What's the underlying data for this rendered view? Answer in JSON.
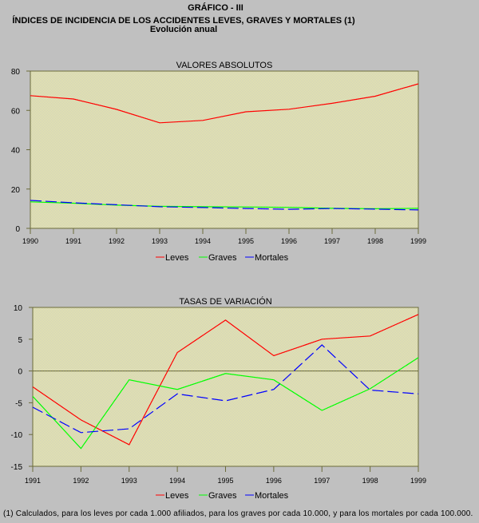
{
  "header": {
    "figure_label": "GRÁFICO - III",
    "title": "ÍNDICES DE INCIDENCIA DE LOS ACCIDENTES LEVES, GRAVES Y MORTALES (1)",
    "subtitle": "Evolución anual"
  },
  "colors": {
    "background": "#c0c0c0",
    "plot_bg_a": "#f0f0a0",
    "plot_bg_b": "#c8c8c8",
    "axis": "#6b6b3a",
    "leves": "#ff0000",
    "graves": "#00ff00",
    "mortales": "#0000ff"
  },
  "legend": [
    "Leves",
    "Graves",
    "Mortales"
  ],
  "footnote": "(1) Calculados, para los leves por cada 1.000 afiliados, para los graves por cada 10.000, y para los mortales por cada 100.000.",
  "chart_data": [
    {
      "type": "line",
      "title": "VALORES ABSOLUTOS",
      "xlabel": "",
      "ylabel": "",
      "x": [
        "1990",
        "1991",
        "1992",
        "1993",
        "1994",
        "1995",
        "1996",
        "1997",
        "1998",
        "1999"
      ],
      "yticks": [
        "0",
        "20",
        "40",
        "60",
        "80"
      ],
      "ylim": [
        0,
        80
      ],
      "grid": false,
      "legend_position": "bottom",
      "series": [
        {
          "name": "Leves",
          "color": "#ff0000",
          "style": "solid",
          "values": [
            67.5,
            65.8,
            60.5,
            53.7,
            54.9,
            59.3,
            60.6,
            63.6,
            67.2,
            73.5
          ]
        },
        {
          "name": "Graves",
          "color": "#00ff00",
          "style": "solid",
          "values": [
            13.5,
            12.8,
            11.8,
            11.2,
            11.0,
            10.9,
            10.7,
            10.2,
            10.0,
            10.2
          ]
        },
        {
          "name": "Mortales",
          "color": "#0000ff",
          "style": "dashed",
          "values": [
            14.2,
            13.0,
            12.0,
            11.0,
            10.6,
            10.1,
            9.7,
            10.1,
            9.8,
            9.4
          ]
        }
      ]
    },
    {
      "type": "line",
      "title": "TASAS DE VARIACIÓN",
      "xlabel": "",
      "ylabel": "",
      "x": [
        "1991",
        "1992",
        "1993",
        "1994",
        "1995",
        "1996",
        "1997",
        "1998",
        "1999"
      ],
      "yticks": [
        "-15",
        "-10",
        "-5",
        "0",
        "5",
        "10"
      ],
      "ylim": [
        -15,
        10
      ],
      "grid": false,
      "zero_line": true,
      "legend_position": "bottom",
      "series": [
        {
          "name": "Leves",
          "color": "#ff0000",
          "style": "solid",
          "values": [
            -2.5,
            -7.7,
            -11.6,
            2.9,
            8.0,
            2.4,
            5.0,
            5.5,
            8.9
          ]
        },
        {
          "name": "Graves",
          "color": "#00ff00",
          "style": "solid",
          "values": [
            -4.0,
            -12.2,
            -1.4,
            -2.9,
            -0.4,
            -1.4,
            -6.2,
            -2.8,
            2.1
          ]
        },
        {
          "name": "Mortales",
          "color": "#0000ff",
          "style": "dashed",
          "values": [
            -5.7,
            -9.7,
            -9.1,
            -3.6,
            -4.7,
            -2.9,
            4.1,
            -3.0,
            -3.6
          ]
        }
      ]
    }
  ]
}
